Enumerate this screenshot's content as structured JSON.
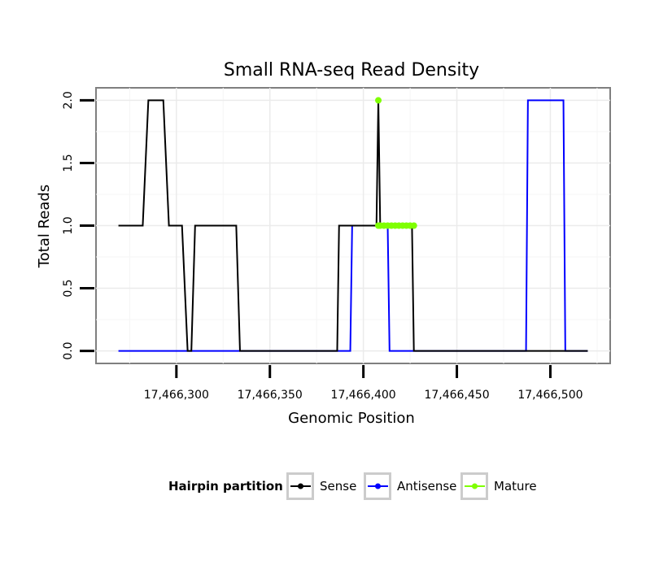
{
  "chart_data": {
    "type": "line",
    "title": "Small RNA-seq Read Density",
    "xlabel": "Genomic Position",
    "ylabel": "Total Reads",
    "xlim": [
      17466257,
      17466532
    ],
    "ylim": [
      -0.1,
      2.1
    ],
    "x_ticks": [
      17466300,
      17466350,
      17466400,
      17466450,
      17466500
    ],
    "x_tick_labels": [
      "17,466,300",
      "17,466,350",
      "17,466,400",
      "17,466,450",
      "17,466,500"
    ],
    "y_ticks": [
      0,
      0.5,
      1,
      1.5,
      2
    ],
    "y_tick_labels": [
      "0.0",
      "0.5",
      "1.0",
      "1.5",
      "2.0"
    ],
    "grid": true,
    "legend": {
      "title": "Hairpin partition",
      "position": "bottom"
    },
    "series": [
      {
        "name": "Sense",
        "color": "#000000",
        "x": [
          17466269,
          17466282,
          17466285,
          17466293,
          17466296,
          17466303,
          17466306,
          17466308,
          17466310,
          17466332,
          17466334,
          17466386,
          17466387,
          17466407,
          17466408,
          17466409,
          17466426,
          17466427,
          17466520
        ],
        "y": [
          1,
          1,
          2,
          2,
          1,
          1,
          0,
          0,
          1,
          1,
          0,
          0,
          1,
          1,
          2,
          1,
          1,
          0,
          0
        ]
      },
      {
        "name": "Antisense",
        "color": "#0000ff",
        "x": [
          17466269,
          17466393,
          17466394,
          17466413,
          17466414,
          17466487,
          17466488,
          17466507,
          17466508,
          17466520
        ],
        "y": [
          0,
          0,
          1,
          1,
          0,
          0,
          2,
          2,
          0,
          0
        ]
      },
      {
        "name": "Mature",
        "color": "#7fff00",
        "x": [
          17466408,
          17466408,
          17466409,
          17466411,
          17466413,
          17466415,
          17466417,
          17466419,
          17466421,
          17466423,
          17466425,
          17466427
        ],
        "y": [
          2,
          1,
          1,
          1,
          1,
          1,
          1,
          1,
          1,
          1,
          1,
          1
        ],
        "markers": true
      }
    ]
  }
}
